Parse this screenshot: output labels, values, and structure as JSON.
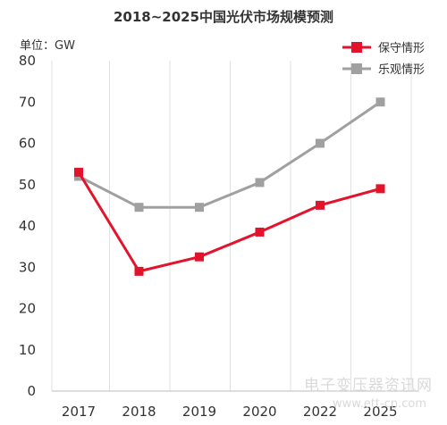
{
  "chart_data": {
    "type": "line",
    "title": "2018~2025中国光伏市场规模预测",
    "unit_label": "单位：GW",
    "x": [
      "2017",
      "2018",
      "2019",
      "2020",
      "2022",
      "2025"
    ],
    "ylim": [
      0,
      80
    ],
    "y_ticks": [
      "0",
      "10",
      "20",
      "30",
      "40",
      "50",
      "60",
      "70",
      "80"
    ],
    "grid": "vertical",
    "legend_position": "top-right",
    "series": [
      {
        "name": "保守情形",
        "color": "#e3132b",
        "marker": "square",
        "values": [
          53,
          29,
          32.5,
          38.5,
          45,
          49
        ]
      },
      {
        "name": "乐观情形",
        "color": "#a0a0a0",
        "marker": "square",
        "values": [
          52,
          44.5,
          44.5,
          50.5,
          60,
          70
        ]
      }
    ]
  },
  "watermark": {
    "text": "电子变压器资讯网",
    "url": "www.ett-cn.com",
    "color": "#d9d9d9"
  }
}
